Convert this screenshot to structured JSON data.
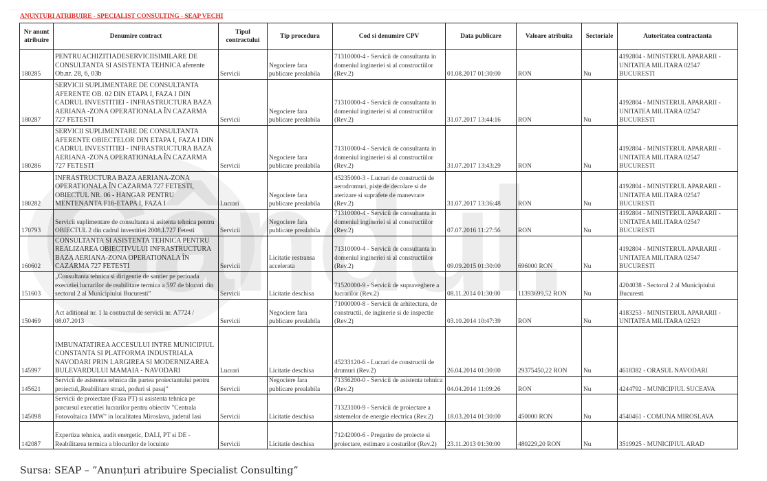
{
  "title": "ANUNTURI ATRIBUIRE - SPECIALIST CONSULTING - SEAP VECHI",
  "watermark": "Gândul.",
  "columns": [
    "Nr anunt atribuire",
    "Denumire contract",
    "Tipul contractului",
    "Tip procedura",
    "Cod si denumire CPV",
    "Data publicare",
    "Valoare atribuita",
    "Sectoriale",
    "Autoritatea contractanta"
  ],
  "rows": [
    {
      "nr": "180285",
      "denumire": "PENTRUACHIZITIADESERVICIISIMILARE DE CONSULTANTA SI ASISTENTA TEHNICA aferente Ob.nr. 28, 6, 03b",
      "tip": "Servicii",
      "procedura": "Negociere fara publicare prealabila",
      "cpv": "71310000-4 - Servicii de consultanta in domeniul ingineriei si al constructiilor (Rev.2)",
      "data": "01.08.2017 01:30:00",
      "valoare": "RON",
      "sectoriale": "Nu",
      "autoritate": "4192804 - MINISTERUL APARARII - UNITATEA MILITARA 02547 BUCURESTI",
      "upper": true
    },
    {
      "nr": "180287",
      "denumire": "SERVICII SUPLIMENTARE DE CONSULTANTA AFERENTE OB. 02 DIN ETAPA I, FAZA I DIN CADRUL INVESTITIEI - INFRASTRUCTURA BAZA AERIANA -ZONA OPERATIONALA ÎN CAZARMA 727 FETESTI",
      "tip": "Servicii",
      "procedura": "Negociere fara publicare prealabila",
      "cpv": "71310000-4 - Servicii de consultanta in domeniul ingineriei si al constructiilor (Rev.2)",
      "data": "31.07.2017 13:44:16",
      "valoare": "RON",
      "sectoriale": "Nu",
      "autoritate": "4192804 - MINISTERUL APARARII - UNITATEA MILITARA 02547 BUCURESTI",
      "upper": true
    },
    {
      "nr": "180286",
      "denumire": "SERVICII SUPLIMENTARE DE CONSULTANTA AFERENTE OBIECTELOR DIN ETAPA I, FAZA I DIN CADRUL INVESTITIEI - INFRASTRUCTURA BAZA AERIANA -ZONA OPERATIONALA ÎN CAZARMA 727 FETESTI",
      "tip": "Servicii",
      "procedura": "Negociere fara publicare prealabila",
      "cpv": "71310000-4 - Servicii de consultanta in domeniul ingineriei si al constructiilor (Rev.2)",
      "data": "31.07.2017 13:43:29",
      "valoare": "RON",
      "sectoriale": "Nu",
      "autoritate": "4192804 - MINISTERUL APARARII - UNITATEA MILITARA 02547 BUCURESTI",
      "upper": true
    },
    {
      "nr": "180282",
      "denumire": "INFRASTRUCTURA BAZA AERIANA-ZONA OPERATIONALA ÎN CAZARMA 727 FETESTI, OBIECTUL NR. 06 - HANGAR PENTRU MENTENANTA F16-ETAPA I, FAZA I",
      "tip": "Lucrari",
      "procedura": "Negociere fara publicare prealabila",
      "cpv": "45235000-3 - Lucrari de constructii de aerodromuri, piste de decolare si de aterizare si suprafete de manevrare (Rev.2)",
      "data": "31.07.2017 13:36:48",
      "valoare": "RON",
      "sectoriale": "Nu",
      "autoritate": "4192804 - MINISTERUL APARARII - UNITATEA MILITARA 02547 BUCURESTI",
      "upper": true
    },
    {
      "nr": "170793",
      "denumire": "Servicii suplimentare de consultanta si asitenta tehnica pentru OBIECTUL 2 din cadrul investitiei 2008.L727 Fetesti",
      "tip": "Servicii",
      "procedura": "Negociere fara publicare prealabila",
      "cpv": "71310000-4 - Servicii de consultanta in domeniul ingineriei si al constructiilor (Rev.2)",
      "data": "07.07.2016 11:27:56",
      "valoare": "RON",
      "sectoriale": "Nu",
      "autoritate": "4192804 - MINISTERUL APARARII - UNITATEA MILITARA 02547 BUCURESTI",
      "upper": false
    },
    {
      "nr": "160602",
      "denumire": "CONSULTANTA SI ASISTENTA TEHNICA PENTRU REALIZAREA OBIECTIVULUI INFRASTRUCTURA BAZA AERIANA-ZONA OPERATIONALA ÎN CAZARMA 727 FETESTI",
      "tip": "Servicii",
      "procedura": "Licitatie restransa accelerata",
      "cpv": "71310000-4 - Servicii de consultanta in domeniul ingineriei si al constructiilor (Rev.2)",
      "data": "09.09.2015 01:30:00",
      "valoare": "696000 RON",
      "sectoriale": "Nu",
      "autoritate": "4192804 - MINISTERUL APARARII - UNITATEA MILITARA 02547 BUCURESTI",
      "upper": true
    },
    {
      "nr": "151603",
      "denumire": "„Consultanta tehnica si dirigentie de santier pe perioada executiei lucrarilor de reabilitare termica a 597 de blocuri din sectorul 2 al Municipiului Bucuresti”",
      "tip": "Servicii",
      "procedura": "Licitatie deschisa",
      "cpv": "71520000-9 - Servicii de supraveghere a lucrarilor (Rev.2)",
      "data": "08.11.2014 01:30:00",
      "valoare": "11393699,52 RON",
      "sectoriale": "Nu",
      "autoritate": "4204038 - Sectorul 2 al Municipiului Bucuresti",
      "upper": false
    },
    {
      "nr": "150469",
      "denumire": "Act aditional nr. 1 la contractul de servicii nr. A7724 / 08.07.2013",
      "tip": "Servicii",
      "procedura": "Negociere fara publicare prealabila",
      "cpv": "71000000-8 - Servicii de arhitectura, de constructii, de inginerie si de inspectie (Rev.2)",
      "data": "03.10.2014 10:47:39",
      "valoare": "RON",
      "sectoriale": "Nu",
      "autoritate": "4183253 - MINISTERUL APARARII - UNITATEA MILITARA 02523",
      "upper": false
    },
    {
      "nr": "145997",
      "denumire": "IMBUNATATIREA ACCESULUI INTRE MUNICIPIUL CONSTANTA SI PLATFORMA INDUSTRIALA NAVODARI PRIN LARGIREA SI MODERNIZAREA BULEVARDULUI MAMAIA - NAVODARI",
      "tip": "Lucrari",
      "procedura": "Licitatie deschisa",
      "cpv": "45233120-6 - Lucrari de constructii de drumuri (Rev.2)",
      "data": "26.04.2014 01:30:00",
      "valoare": "29375450,22 RON",
      "sectoriale": "Nu",
      "autoritate": "4618382 - ORASUL NAVODARI",
      "upper": true
    },
    {
      "nr": "145621",
      "denumire": "Servicii de asistenta tehnica din partea proiectantului pentru proiectul„Reabilitare strazi, poduri si pasaj”",
      "tip": "Servicii",
      "procedura": "Negociere fara publicare prealabila",
      "cpv": "71356200-0 - Servicii de asistenta tehnica (Rev.2)",
      "data": "04.04.2014 11:09:26",
      "valoare": "RON",
      "sectoriale": "Nu",
      "autoritate": "4244792 - MUNICIPIUL SUCEAVA",
      "upper": false
    },
    {
      "nr": "145098",
      "denumire": "Servicii de proiectare (Faza PT) si asistenta tehnica pe parcursul executiei lucrarilor pentru obiectiv \"Centrala Fotovoltaica 1MW\" in localitatea Miroslava, judetul Iasi",
      "tip": "Servicii",
      "procedura": "Licitatie deschisa",
      "cpv": "71323100-9 - Servicii de proiectare a sistemelor de energie electrica (Rev.2)",
      "data": "18.03.2014 01:30:00",
      "valoare": "450000 RON",
      "sectoriale": "Nu",
      "autoritate": "4540461 - COMUNA MIROSLAVA",
      "upper": false
    },
    {
      "nr": "142087",
      "denumire": "Expertiza tehnica, audit energetic, DALI, PT si DE - Reabilitarea termica a blocurilor de locuinte",
      "tip": "Servicii",
      "procedura": "Licitatie deschisa",
      "cpv": "71242000-6 - Pregatire de proiecte si proiectare, estimare a costurilor (Rev.2)",
      "data": "23.11.2013 01:30:00",
      "valoare": "480229,20 RON",
      "sectoriale": "Nu",
      "autoritate": "3519925 - MUNICIPIUL ARAD",
      "upper": false
    }
  ],
  "source": "Sursa: SEAP – ”Anunțuri atribuire Specialist Consulting”"
}
